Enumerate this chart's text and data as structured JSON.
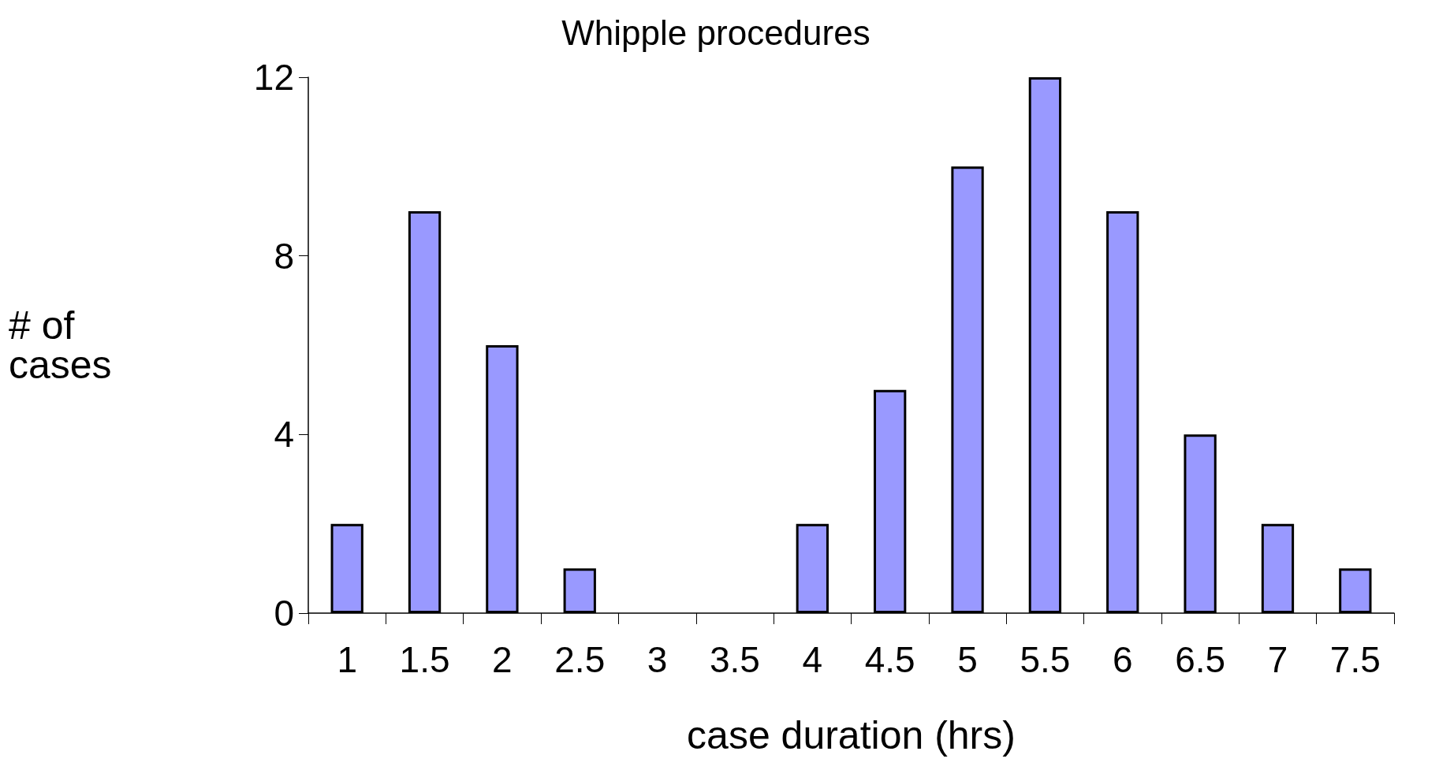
{
  "chart_data": {
    "type": "bar",
    "title": "Whipple procedures",
    "xlabel": "case duration (hrs)",
    "ylabel": "# of\ncases",
    "categories": [
      "1",
      "1.5",
      "2",
      "2.5",
      "3",
      "3.5",
      "4",
      "4.5",
      "5",
      "5.5",
      "6",
      "6.5",
      "7",
      "7.5"
    ],
    "values": [
      2,
      9,
      6,
      1,
      0,
      0,
      2,
      5,
      10,
      12,
      9,
      4,
      2,
      1
    ],
    "color": "#9999ff",
    "ylim": [
      0,
      12
    ],
    "yticks": [
      0,
      4,
      8,
      12
    ],
    "grid": false
  }
}
